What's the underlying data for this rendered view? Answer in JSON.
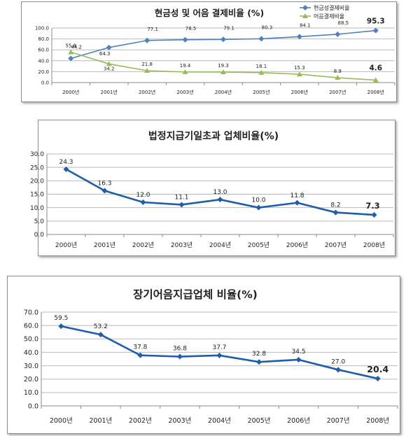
{
  "chart_data": [
    {
      "type": "line",
      "title": "현금성 및 어음 결제비율 (%)",
      "categories": [
        "2000년",
        "2001년",
        "2002년",
        "2003년",
        "2004년",
        "2005년",
        "2006년",
        "2007년",
        "2008년"
      ],
      "ylim": [
        0,
        100
      ],
      "yticks": [
        "0.0",
        "20.0",
        "40.0",
        "60.0",
        "80.0",
        "100.0"
      ],
      "grid": true,
      "legend_position": "top-right",
      "series": [
        {
          "name": "현금성결제비율",
          "color": "#4f81bd",
          "marker": "diamond",
          "values": [
            44.2,
            64.3,
            77.1,
            78.5,
            79.1,
            80.3,
            84.1,
            88.5,
            95.3
          ],
          "labels": [
            "44.2",
            "64.3",
            "77.1",
            "78.5",
            "79.1",
            "80.3",
            "84.1",
            "88.5",
            "95.3"
          ]
        },
        {
          "name": "어음결제비율",
          "color": "#9bbb59",
          "marker": "triangle",
          "values": [
            55.8,
            34.2,
            21.8,
            19.4,
            19.3,
            18.1,
            15.3,
            8.9,
            4.6
          ],
          "labels": [
            "55.8",
            "34.2",
            "21.8",
            "19.4",
            "19.3",
            "18.1",
            "15.3",
            "8.9",
            "4.6"
          ]
        }
      ]
    },
    {
      "type": "line",
      "title": "법정지급기일초과 업체비율(%)",
      "categories": [
        "2000년",
        "2001년",
        "2002년",
        "2003년",
        "2004년",
        "2005년",
        "2006년",
        "2007년",
        "2008년"
      ],
      "ylim": [
        0,
        30
      ],
      "yticks": [
        "0.0",
        "5.0",
        "10.0",
        "15.0",
        "20.0",
        "25.0",
        "30.0"
      ],
      "grid": true,
      "series": [
        {
          "color": "#1f5fa9",
          "marker": "diamond",
          "values": [
            24.3,
            16.3,
            12.0,
            11.1,
            13.0,
            10.0,
            11.8,
            8.2,
            7.3
          ],
          "labels": [
            "24.3",
            "16.3",
            "12.0",
            "11.1",
            "13.0",
            "10.0",
            "11.8",
            "8.2",
            "7.3"
          ]
        }
      ]
    },
    {
      "type": "line",
      "title": "장기어음지급업체 비율(%)",
      "categories": [
        "2000년",
        "2001년",
        "2002년",
        "2003년",
        "2004년",
        "2005년",
        "2006년",
        "2007년",
        "2008년"
      ],
      "ylim": [
        0,
        70
      ],
      "yticks": [
        "0.0",
        "10.0",
        "20.0",
        "30.0",
        "40.0",
        "50.0",
        "60.0",
        "70.0"
      ],
      "grid": true,
      "series": [
        {
          "color": "#1f5fa9",
          "marker": "diamond",
          "values": [
            59.5,
            53.2,
            37.8,
            36.8,
            37.7,
            32.8,
            34.5,
            27.0,
            20.4
          ],
          "labels": [
            "59.5",
            "53.2",
            "37.8",
            "36.8",
            "37.7",
            "32.8",
            "34.5",
            "27.0",
            "20.4"
          ]
        }
      ]
    }
  ]
}
